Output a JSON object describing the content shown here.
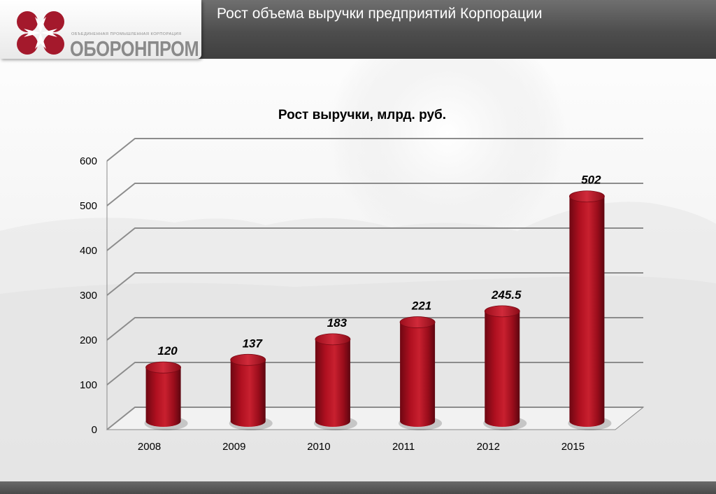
{
  "header": {
    "slide_title": "Рост объема выручки предприятий Корпорации",
    "logo_tagline": "ОБЪЕДИНЕННАЯ ПРОМЫШЛЕННАЯ КОРПОРАЦИЯ",
    "logo_name": "ОБОРОНПРОМ",
    "logo_icon": "oboronprom-emblem-icon"
  },
  "colors": {
    "bar": "#b01020",
    "header": "#555555"
  },
  "chart_data": {
    "type": "bar",
    "title": "Рост выручки, млрд. руб.",
    "xlabel": "",
    "ylabel": "",
    "categories": [
      "2008",
      "2009",
      "2010",
      "2011",
      "2012",
      "2015"
    ],
    "values": [
      120,
      137,
      183,
      221,
      245.5,
      502
    ],
    "value_labels": [
      "120",
      "137",
      "183",
      "221",
      "245.5",
      "502"
    ],
    "ylim": [
      0,
      600
    ],
    "yticks": [
      "0",
      "100",
      "200",
      "300",
      "400",
      "500",
      "600"
    ],
    "grid": true,
    "legend": "none"
  }
}
